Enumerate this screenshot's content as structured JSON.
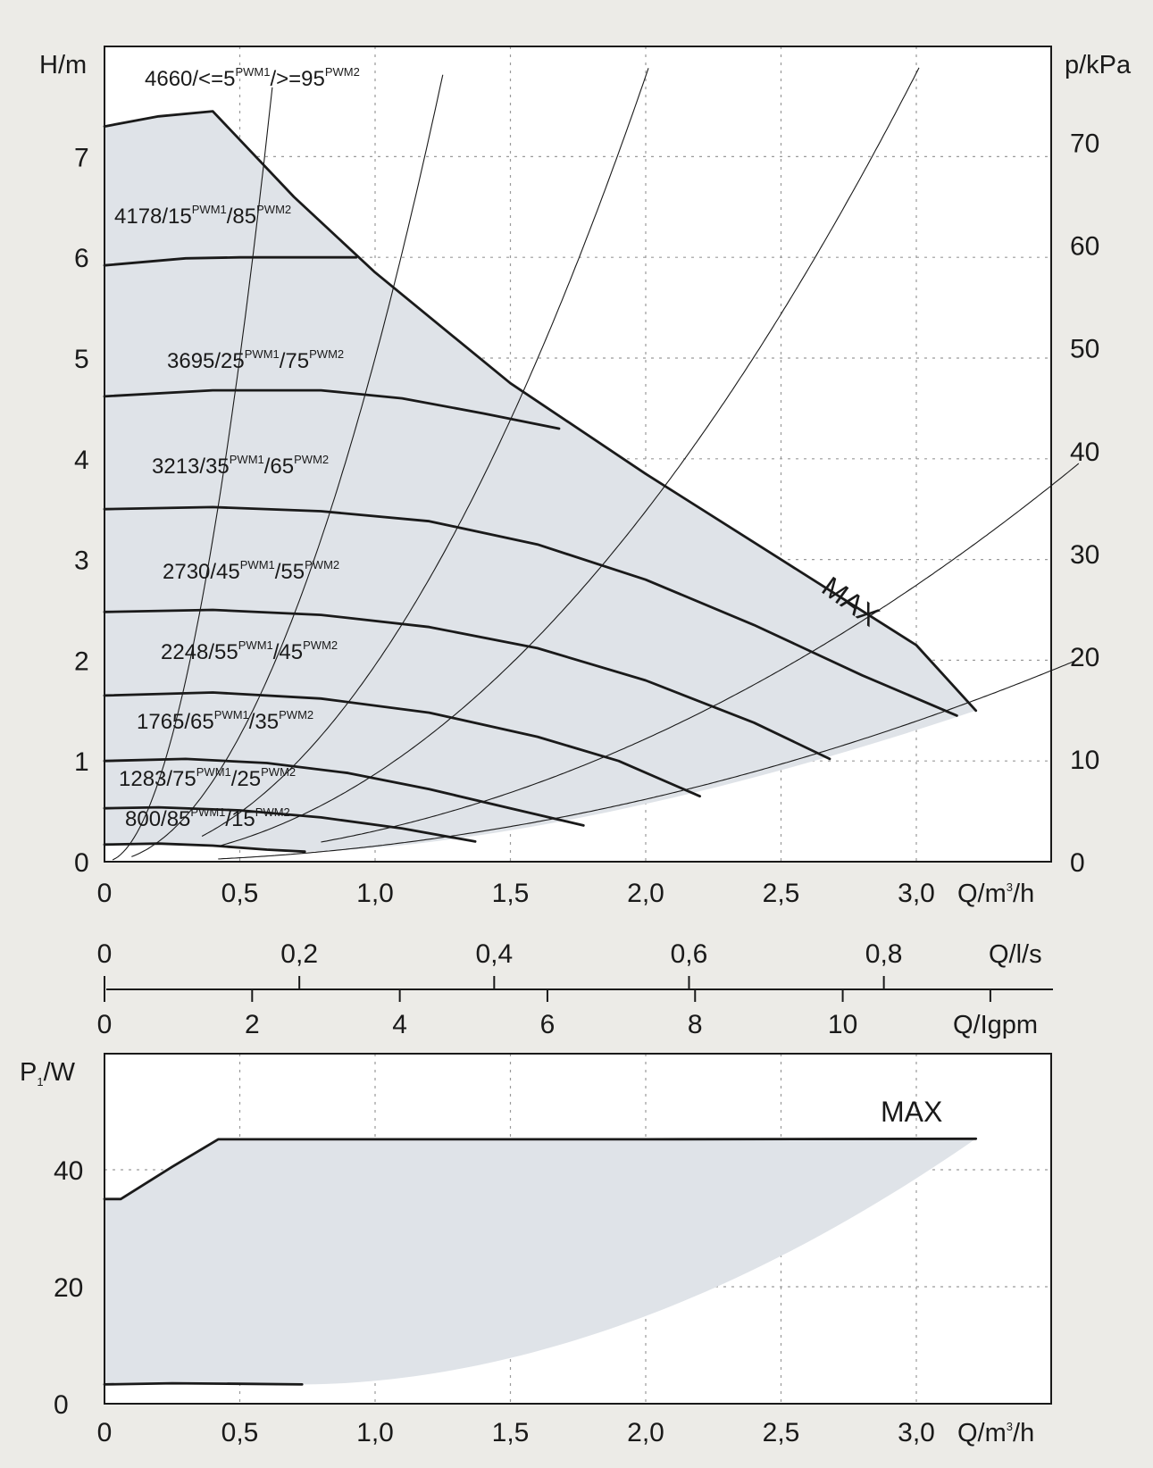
{
  "chart_data": [
    {
      "type": "line",
      "panel": "pump-head-curves",
      "y_axis": {
        "label": "H/m",
        "range": [
          0,
          7.5
        ],
        "ticks": [
          "0",
          "1",
          "2",
          "3",
          "4",
          "5",
          "6",
          "7"
        ]
      },
      "y2_axis": {
        "label": "p/kPa",
        "range": [
          0,
          75
        ],
        "ticks": [
          "0",
          "10",
          "20",
          "30",
          "40",
          "50",
          "60",
          "70"
        ]
      },
      "x_axis": {
        "label": "Q/m³/h",
        "range": [
          0,
          3.5
        ],
        "ticks": [
          "0",
          "0,5",
          "1,0",
          "1,5",
          "2,0",
          "2,5",
          "3,0"
        ]
      },
      "grid": true,
      "series": [
        {
          "name": "4660/<=5 PWM1/>=95 PWM2",
          "label_main": "4660/<=5",
          "label_sup1": "PWM1",
          "label_mid": "/>=95",
          "label_sup2": "PWM2",
          "points": [
            [
              0,
              7.3
            ],
            [
              0.2,
              7.4
            ],
            [
              0.4,
              7.45
            ],
            [
              0.7,
              6.6
            ],
            [
              1.0,
              5.85
            ],
            [
              1.5,
              4.75
            ],
            [
              2.0,
              3.85
            ],
            [
              2.5,
              3.0
            ],
            [
              3.0,
              2.15
            ],
            [
              3.22,
              1.5
            ]
          ]
        },
        {
          "name": "4178/15 PWM1/85 PWM2",
          "label_main": "4178/15",
          "label_sup1": "PWM1",
          "label_mid": "/85",
          "label_sup2": "PWM2",
          "points": [
            [
              0,
              5.92
            ],
            [
              0.3,
              5.99
            ],
            [
              0.5,
              6.0
            ],
            [
              0.7,
              6.0
            ],
            [
              0.93,
              6.0
            ]
          ]
        },
        {
          "name": "3695/25 PWM1/75 PWM2",
          "label_main": "3695/25",
          "label_sup1": "PWM1",
          "label_mid": "/75",
          "label_sup2": "PWM2",
          "points": [
            [
              0,
              4.62
            ],
            [
              0.4,
              4.68
            ],
            [
              0.8,
              4.68
            ],
            [
              1.1,
              4.6
            ],
            [
              1.4,
              4.45
            ],
            [
              1.68,
              4.3
            ]
          ]
        },
        {
          "name": "3213/35 PWM1/65 PWM2",
          "label_main": "3213/35",
          "label_sup1": "PWM1",
          "label_mid": "/65",
          "label_sup2": "PWM2",
          "points": [
            [
              0,
              3.5
            ],
            [
              0.4,
              3.52
            ],
            [
              0.8,
              3.48
            ],
            [
              1.2,
              3.38
            ],
            [
              1.6,
              3.15
            ],
            [
              2.0,
              2.8
            ],
            [
              2.4,
              2.35
            ],
            [
              2.8,
              1.85
            ],
            [
              3.15,
              1.45
            ]
          ]
        },
        {
          "name": "2730/45 PWM1/55 PWM2",
          "label_main": "2730/45",
          "label_sup1": "PWM1",
          "label_mid": "/55",
          "label_sup2": "PWM2",
          "points": [
            [
              0,
              2.48
            ],
            [
              0.4,
              2.5
            ],
            [
              0.8,
              2.45
            ],
            [
              1.2,
              2.33
            ],
            [
              1.6,
              2.12
            ],
            [
              2.0,
              1.8
            ],
            [
              2.4,
              1.38
            ],
            [
              2.68,
              1.02
            ]
          ]
        },
        {
          "name": "2248/55 PWM1/45 PWM2",
          "label_main": "2248/55",
          "label_sup1": "PWM1",
          "label_mid": "/45",
          "label_sup2": "PWM2",
          "points": [
            [
              0,
              1.65
            ],
            [
              0.4,
              1.68
            ],
            [
              0.8,
              1.62
            ],
            [
              1.2,
              1.48
            ],
            [
              1.6,
              1.24
            ],
            [
              1.9,
              1.0
            ],
            [
              2.2,
              0.65
            ]
          ]
        },
        {
          "name": "1765/65 PWM1/35 PWM2",
          "label_main": "1765/65",
          "label_sup1": "PWM1",
          "label_mid": "/35",
          "label_sup2": "PWM2",
          "points": [
            [
              0,
              1.0
            ],
            [
              0.3,
              1.02
            ],
            [
              0.6,
              0.98
            ],
            [
              0.9,
              0.88
            ],
            [
              1.2,
              0.72
            ],
            [
              1.5,
              0.53
            ],
            [
              1.77,
              0.36
            ]
          ]
        },
        {
          "name": "1283/75 PWM1/25 PWM2",
          "label_main": "1283/75",
          "label_sup1": "PWM1",
          "label_mid": "/25",
          "label_sup2": "PWM2",
          "points": [
            [
              0,
              0.53
            ],
            [
              0.2,
              0.54
            ],
            [
              0.5,
              0.51
            ],
            [
              0.8,
              0.44
            ],
            [
              1.1,
              0.33
            ],
            [
              1.37,
              0.2
            ]
          ]
        },
        {
          "name": "800/85 PWM1/15 PWM2",
          "label_main": "800/85",
          "label_sup1": "PWM1",
          "label_mid": "/15",
          "label_sup2": "PWM2",
          "points": [
            [
              0,
              0.17
            ],
            [
              0.2,
              0.18
            ],
            [
              0.4,
              0.16
            ],
            [
              0.6,
              0.12
            ],
            [
              0.74,
              0.1
            ]
          ]
        }
      ],
      "annotations": [
        "MAX"
      ]
    },
    {
      "type": "area",
      "panel": "power-consumption",
      "y_axis": {
        "label": "P₁/W",
        "range": [
          0,
          60
        ],
        "ticks": [
          "0",
          "20",
          "40"
        ]
      },
      "x_axis": {
        "label": "Q/m³/h",
        "range": [
          0,
          3.5
        ],
        "ticks": [
          "0",
          "0,5",
          "1,0",
          "1,5",
          "2,0",
          "2,5",
          "3,0"
        ]
      },
      "grid": true,
      "series": [
        {
          "name": "MAX",
          "points": [
            [
              0,
              35
            ],
            [
              0.06,
              35
            ],
            [
              0.25,
              40.5
            ],
            [
              0.42,
              45.2
            ],
            [
              1.0,
              45.2
            ],
            [
              2.0,
              45.2
            ],
            [
              3.22,
              45.3
            ]
          ]
        },
        {
          "name": "min",
          "points": [
            [
              0,
              3.3
            ],
            [
              0.25,
              3.5
            ],
            [
              0.5,
              3.4
            ],
            [
              0.73,
              3.3
            ]
          ]
        }
      ],
      "annotations": [
        "MAX"
      ]
    }
  ],
  "scales": {
    "ls": {
      "label": "Q/l/s",
      "ticks": [
        "0",
        "0,2",
        "0,4",
        "0,6",
        "0,8"
      ],
      "values": [
        0,
        0.2,
        0.4,
        0.6,
        0.8
      ]
    },
    "igpm": {
      "label": "Q/Igpm",
      "ticks": [
        "0",
        "2",
        "4",
        "6",
        "8",
        "10"
      ],
      "values": [
        0,
        2,
        4,
        6,
        8,
        10
      ]
    }
  },
  "labels": {
    "h_axis": "H/m",
    "p_axis": "p/kPa",
    "q_axis_main": "Q/m",
    "q_axis_sup": "3",
    "q_axis_tail": "/h",
    "ls_axis": "Q/l/s",
    "igpm_axis": "Q/Igpm",
    "power_axis_main": "P",
    "power_axis_sub": "1",
    "power_axis_tail": "/W",
    "max_top": "MAX",
    "max_bottom": "MAX"
  },
  "colors": {
    "region": "#dfe3e8",
    "background": "#ecebe7",
    "plot": "#ffffff",
    "line": "#1a1a1a"
  }
}
